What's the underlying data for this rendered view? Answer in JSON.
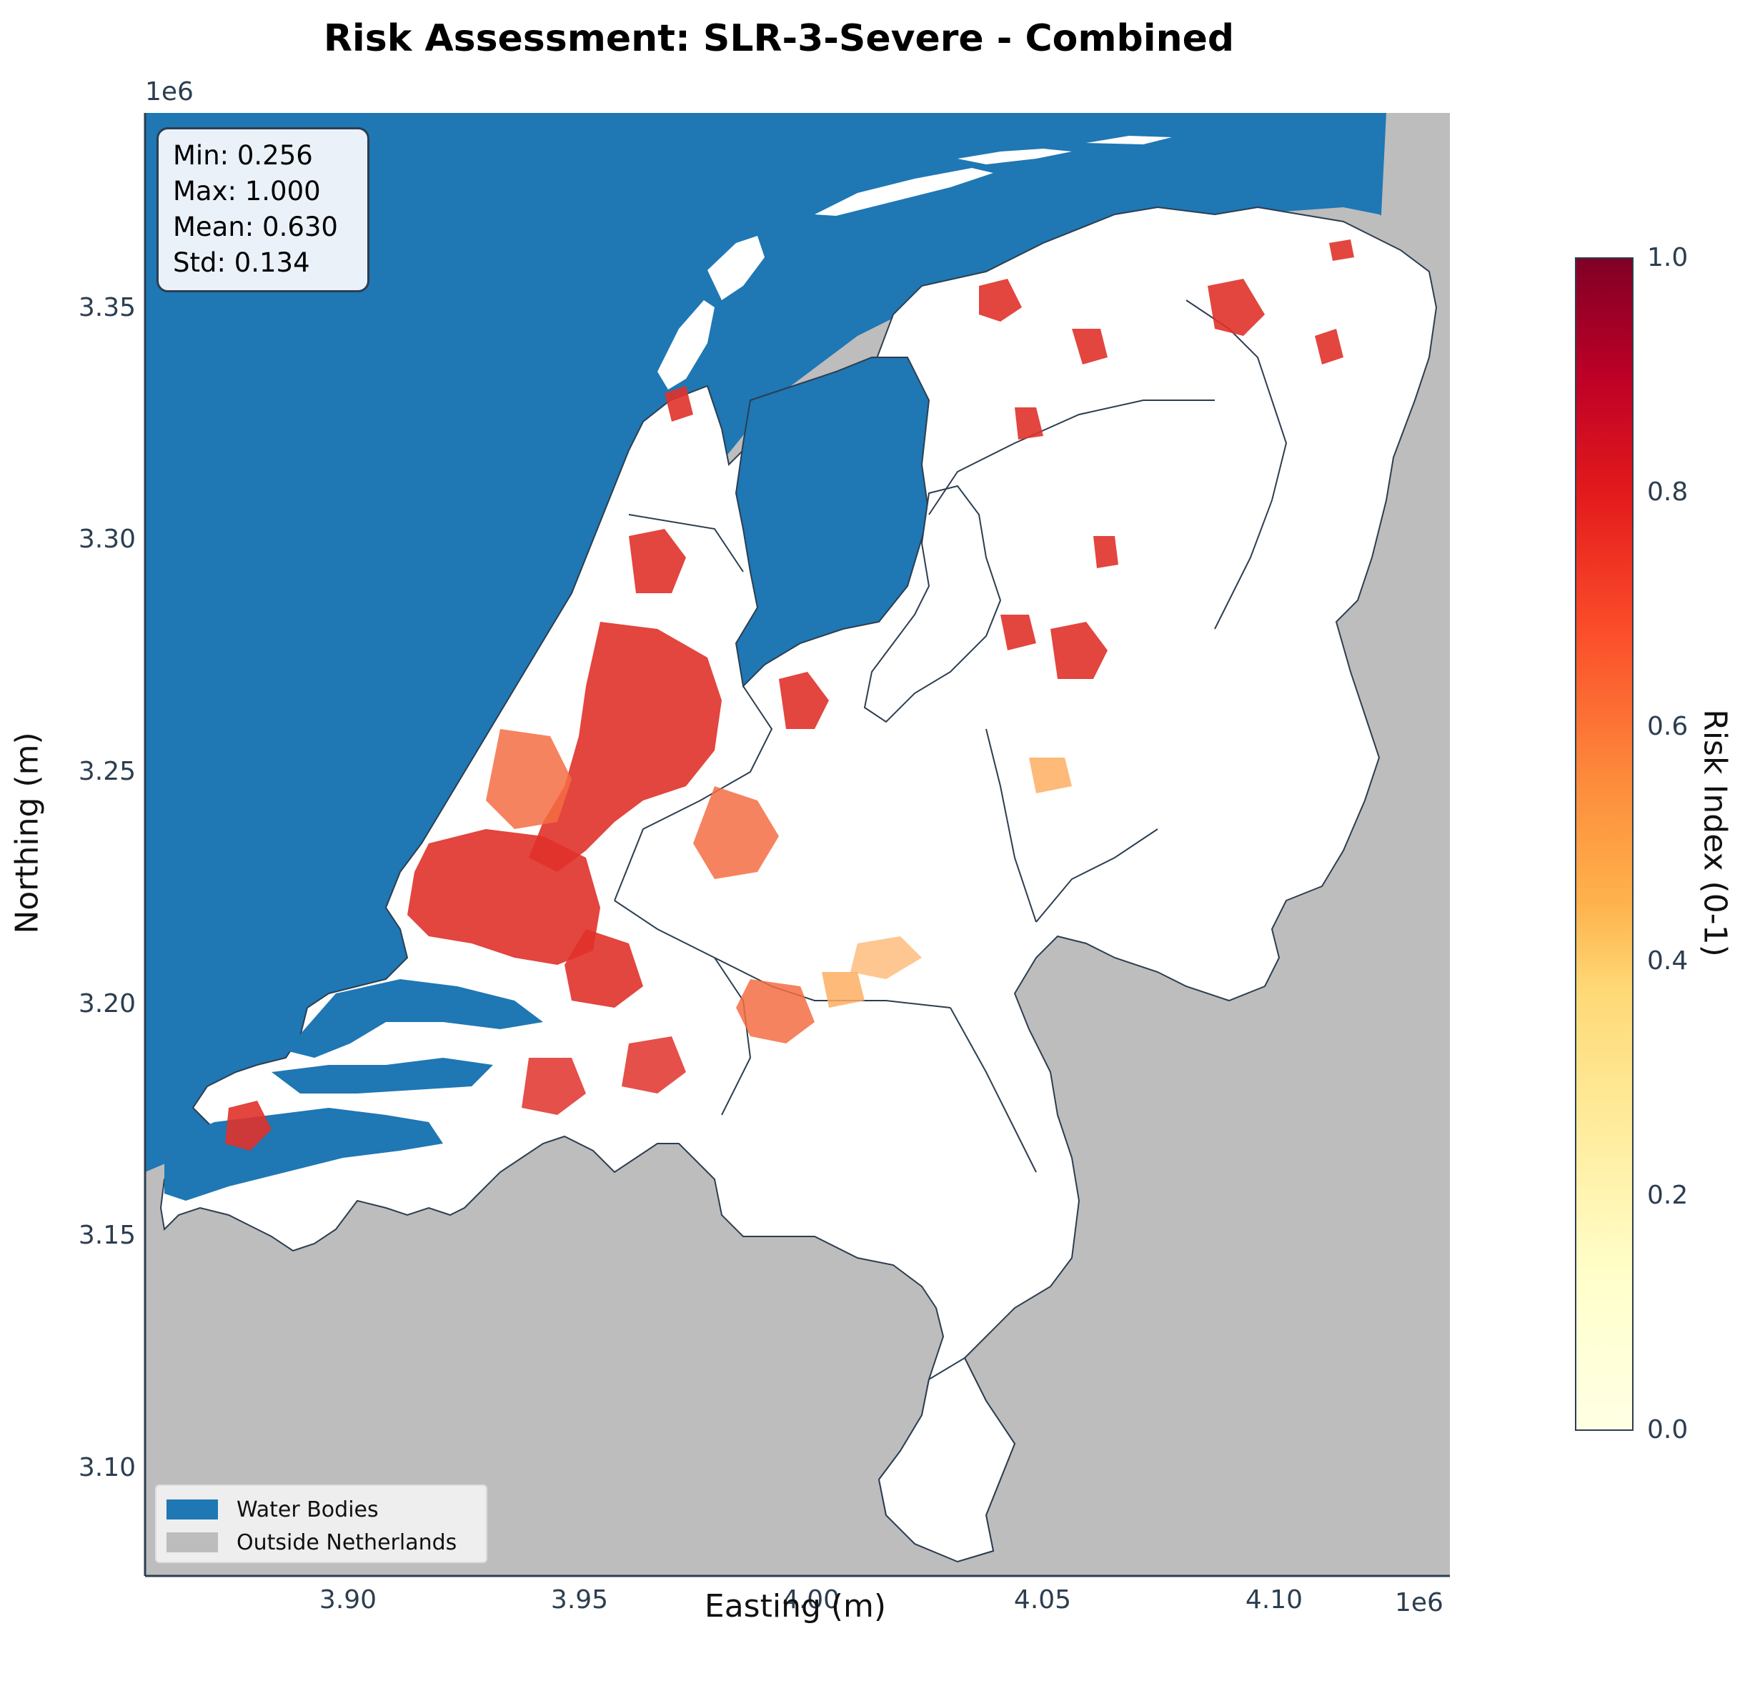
{
  "title": "Risk Assessment: SLR-3-Severe - Combined",
  "axis": {
    "x_label": "Easting (m)",
    "y_label": "Northing (m)",
    "x_exponent": "1e6",
    "y_exponent": "1e6",
    "x_ticks": [
      "3.90",
      "3.95",
      "4.00",
      "4.05",
      "4.10"
    ],
    "y_ticks": [
      "3.35",
      "3.30",
      "3.25",
      "3.20",
      "3.15",
      "3.10"
    ]
  },
  "stats": {
    "min": "Min: 0.256",
    "max": "Max: 1.000",
    "mean": "Mean: 0.630",
    "std": "Std: 0.134"
  },
  "legend": {
    "water": "Water Bodies",
    "outside": "Outside Netherlands"
  },
  "colorbar": {
    "label": "Risk Index (0-1)",
    "ticks": [
      "1.0",
      "0.8",
      "0.6",
      "0.4",
      "0.2",
      "0.0"
    ]
  },
  "colors": {
    "water": "#1f77b4",
    "outside": "#bdbdbd",
    "land": "#ffffff",
    "border": "#2c3e50",
    "risk_high": "#e0312a",
    "risk_mid": "#f46d43",
    "risk_low": "#fdae61",
    "cmap": [
      "#ffffcc",
      "#ffeda0",
      "#fed976",
      "#feb24c",
      "#fd8d3c",
      "#fc4e2a",
      "#e31a1c",
      "#bd0026",
      "#800026"
    ]
  },
  "chart_data": {
    "type": "heatmap",
    "title": "Risk Assessment: SLR-3-Severe - Combined",
    "xlabel": "Easting (m)",
    "ylabel": "Northing (m)",
    "xlim": [
      3856000,
      4136000
    ],
    "ylim": [
      3075000,
      3390000
    ],
    "colorbar": {
      "label": "Risk Index (0-1)",
      "range": [
        0.0,
        1.0
      ],
      "colormap": "YlOrRd"
    },
    "statistics": {
      "min": 0.256,
      "max": 1.0,
      "mean": 0.63,
      "std": 0.134
    },
    "legend": [
      {
        "name": "Water Bodies",
        "color": "#1f77b4"
      },
      {
        "name": "Outside Netherlands",
        "color": "#bdbdbd"
      }
    ],
    "legend_position": "lower-left",
    "grid": false
  }
}
